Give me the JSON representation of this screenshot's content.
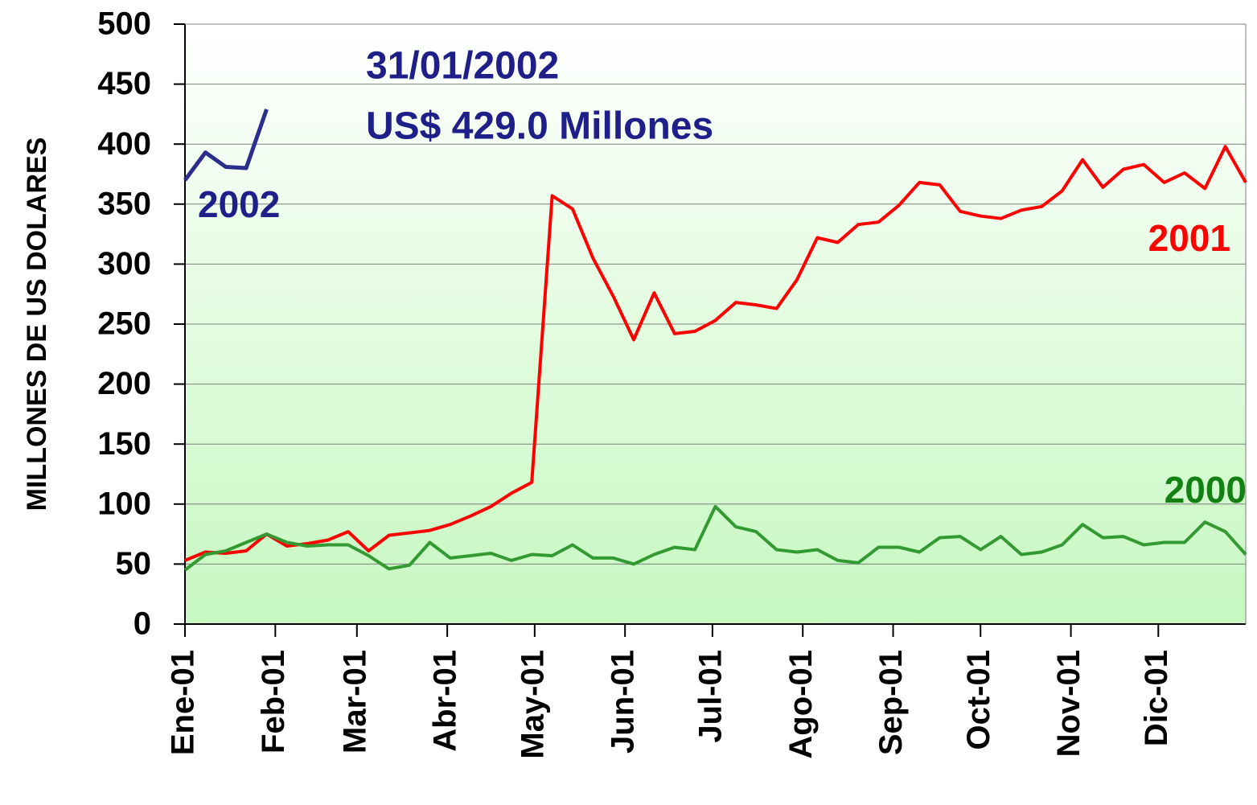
{
  "chart_data": {
    "type": "line",
    "y_label": "MILLONES DE US DOLARES",
    "annotations": [
      "31/01/2002",
      "US$ 429.0 Millones"
    ],
    "x": [
      0,
      7,
      14,
      21,
      28,
      35,
      42,
      49,
      56,
      63,
      70,
      77,
      84,
      91,
      98,
      105,
      112,
      119,
      126,
      133,
      140,
      147,
      154,
      161,
      168,
      175,
      182,
      189,
      196,
      203,
      210,
      217,
      224,
      231,
      238,
      245,
      252,
      259,
      266,
      273,
      280,
      287,
      294,
      301,
      308,
      315,
      322,
      329,
      336,
      343,
      350,
      357,
      364
    ],
    "xlim": [
      0,
      364
    ],
    "xticks": [
      {
        "value": 0,
        "label": "Ene-01"
      },
      {
        "value": 31,
        "label": "Feb-01"
      },
      {
        "value": 59,
        "label": "Mar-01"
      },
      {
        "value": 90,
        "label": "Abr-01"
      },
      {
        "value": 120,
        "label": "May-01"
      },
      {
        "value": 151,
        "label": "Jun-01"
      },
      {
        "value": 181,
        "label": "Jul-01"
      },
      {
        "value": 212,
        "label": "Ago-01"
      },
      {
        "value": 243,
        "label": "Sep-01"
      },
      {
        "value": 273,
        "label": "Oct-01"
      },
      {
        "value": 304,
        "label": "Nov-01"
      },
      {
        "value": 334,
        "label": "Dic-01"
      }
    ],
    "ylim": [
      0,
      500
    ],
    "yticks": [
      0,
      50,
      100,
      150,
      200,
      250,
      300,
      350,
      400,
      450,
      500
    ],
    "grid": true,
    "series": [
      {
        "name": "2002",
        "color": "#2b2e8c",
        "values": [
          370,
          393,
          381,
          380,
          429,
          null,
          null,
          null,
          null,
          null,
          null,
          null,
          null,
          null,
          null,
          null,
          null,
          null,
          null,
          null,
          null,
          null,
          null,
          null,
          null,
          null,
          null,
          null,
          null,
          null,
          null,
          null,
          null,
          null,
          null,
          null,
          null,
          null,
          null,
          null,
          null,
          null,
          null,
          null,
          null,
          null,
          null,
          null,
          null,
          null,
          null,
          null,
          null
        ]
      },
      {
        "name": "2001",
        "color": "#ff0000",
        "values": [
          53,
          60,
          59,
          61,
          75,
          65,
          67,
          70,
          77,
          61,
          74,
          76,
          78,
          83,
          90,
          98,
          109,
          118,
          357,
          346,
          305,
          273,
          237,
          276,
          242,
          244,
          253,
          268,
          266,
          263,
          287,
          322,
          318,
          333,
          335,
          349,
          368,
          366,
          344,
          340,
          338,
          345,
          348,
          361,
          387,
          364,
          379,
          383,
          368,
          376,
          363,
          398,
          368
        ]
      },
      {
        "name": "2000",
        "color": "#339933",
        "values": [
          45,
          58,
          61,
          68,
          75,
          68,
          65,
          66,
          66,
          57,
          46,
          49,
          68,
          55,
          57,
          59,
          53,
          58,
          57,
          66,
          55,
          55,
          50,
          58,
          64,
          62,
          98,
          81,
          77,
          62,
          60,
          62,
          53,
          51,
          64,
          64,
          60,
          72,
          73,
          62,
          73,
          58,
          60,
          66,
          83,
          72,
          73,
          66,
          68,
          68,
          85,
          77,
          58
        ]
      }
    ]
  }
}
